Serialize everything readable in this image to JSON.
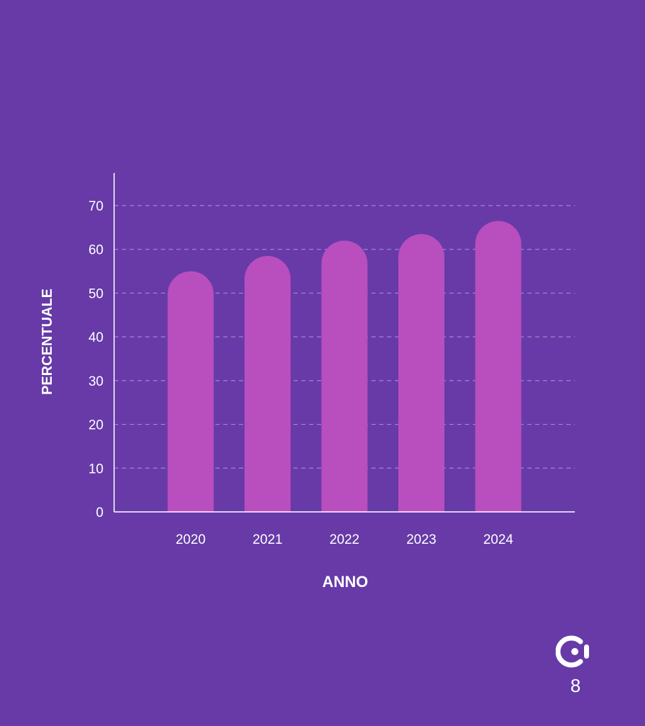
{
  "chart_data": {
    "type": "bar",
    "categories": [
      "2020",
      "2021",
      "2022",
      "2023",
      "2024"
    ],
    "values": [
      55,
      58.5,
      62,
      63.5,
      66.5
    ],
    "title": "",
    "xlabel": "ANNO",
    "ylabel": "PERCENTUALE",
    "ylim": [
      0,
      70
    ],
    "yticks": [
      0,
      10,
      20,
      30,
      40,
      50,
      60,
      70
    ],
    "grid": true,
    "legend": "none",
    "bar_shape": "rounded-top"
  },
  "colors": {
    "background": "#673AA8",
    "bar": "#B94EBE",
    "axis": "#FFFFFF",
    "grid": "#9E86CF",
    "text": "#FFFFFF"
  },
  "footer": {
    "logo_icon": "brand-logo-icon",
    "page_number": "8"
  }
}
